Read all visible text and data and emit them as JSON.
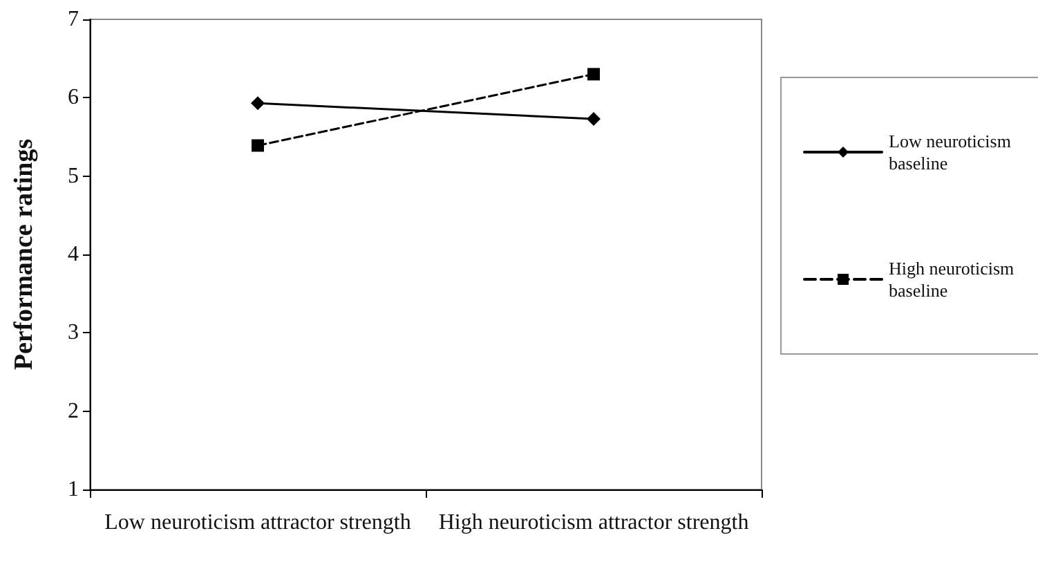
{
  "chart_data": {
    "type": "line",
    "ylabel": "Performance ratings",
    "categories": [
      "Low neuroticism attractor strength",
      "High neuroticism attractor strength"
    ],
    "series": [
      {
        "name": "Low neuroticism baseline",
        "color": "#000000",
        "values": [
          5.93,
          5.73
        ],
        "marker": "diamond",
        "line_style": "solid"
      },
      {
        "name": "High neuroticism baseline",
        "color": "#000000",
        "values": [
          5.39,
          6.3
        ],
        "marker": "square",
        "line_style": "dashed"
      }
    ],
    "ylim": [
      1,
      7
    ],
    "yticks": [
      1,
      2,
      3,
      4,
      5,
      6,
      7
    ],
    "grid": false,
    "legend": "right"
  }
}
